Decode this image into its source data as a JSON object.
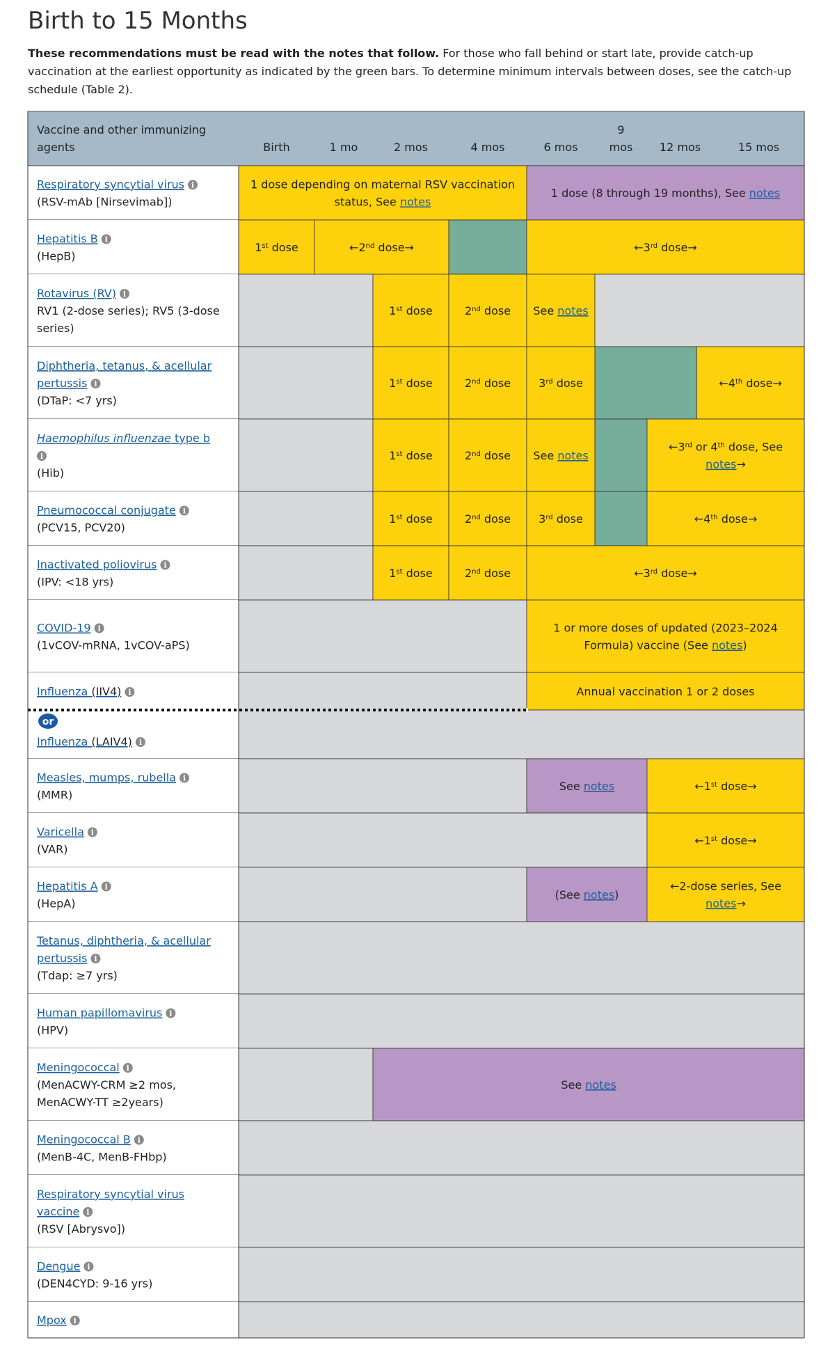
{
  "title": "Birth to 15 Months",
  "intro": {
    "bold": "These recommendations must be read with the notes that follow.",
    "text": "For those who fall behind or start late, provide catch-up vaccination at the earliest opportunity as indicated by the green bars. To determine minimum intervals between doses, see the catch-up schedule (Table 2)."
  },
  "colors": {
    "header_bg": "#a5b9c9",
    "yellow": "#fdd10c",
    "green": "#76ad9b",
    "purple": "#b897c6",
    "gray": "#d7d8d9",
    "link": "#1b5f9e",
    "or_badge": "#1c5aa8"
  },
  "header": {
    "first": [
      "Vaccine and other immunizing",
      "agents"
    ],
    "ages": [
      "Birth",
      "1 mo",
      "2 mos",
      "4 mos",
      "6 mos",
      "9 mos",
      "12 mos",
      "15 mos"
    ]
  },
  "or_label": "or",
  "rows": [
    {
      "name": [
        "Respiratory syncytial virus"
      ],
      "sub": [
        "(RSV-mAb [Nirsevimab])"
      ],
      "info": true,
      "cells": [
        {
          "span": [
            0,
            4
          ],
          "color": "yellow",
          "text": "1 dose depending on maternal RSV vaccination status, See notes"
        },
        {
          "span": [
            4,
            8
          ],
          "color": "purple",
          "text": "1 dose (8 through 19 months), See notes"
        }
      ]
    },
    {
      "name": [
        "Hepatitis B"
      ],
      "sub": [
        "(HepB)"
      ],
      "info": true,
      "cells": [
        {
          "span": [
            0,
            1
          ],
          "color": "yellow",
          "text": "1st dose"
        },
        {
          "span": [
            1,
            3
          ],
          "color": "yellow",
          "text": "←2nd dose→"
        },
        {
          "span": [
            3,
            4
          ],
          "color": "green",
          "text": ""
        },
        {
          "span": [
            4,
            8
          ],
          "color": "yellow",
          "text": "←3rd dose→"
        }
      ]
    },
    {
      "name": [
        "Rotavirus (RV)"
      ],
      "sub": [
        "RV1 (2-dose series); RV5 (3-dose",
        "series)"
      ],
      "info": true,
      "cells": [
        {
          "span": [
            0,
            2
          ],
          "color": "gray",
          "text": ""
        },
        {
          "span": [
            2,
            3
          ],
          "color": "yellow",
          "text": "1st dose"
        },
        {
          "span": [
            3,
            4
          ],
          "color": "yellow",
          "text": "2nd dose"
        },
        {
          "span": [
            4,
            5
          ],
          "color": "yellow",
          "text": "See notes"
        },
        {
          "span": [
            5,
            8
          ],
          "color": "gray",
          "text": ""
        }
      ]
    },
    {
      "name": [
        "Diphtheria, tetanus, & acellular",
        "pertussis"
      ],
      "sub": [
        "(DTaP: <7 yrs)"
      ],
      "info": true,
      "cells": [
        {
          "span": [
            0,
            2
          ],
          "color": "gray",
          "text": ""
        },
        {
          "span": [
            2,
            3
          ],
          "color": "yellow",
          "text": "1st dose"
        },
        {
          "span": [
            3,
            4
          ],
          "color": "yellow",
          "text": "2nd dose"
        },
        {
          "span": [
            4,
            5
          ],
          "color": "yellow",
          "text": "3rd dose"
        },
        {
          "span": [
            5,
            6.75
          ],
          "color": "green",
          "text": ""
        },
        {
          "span": [
            6.75,
            8
          ],
          "color": "yellow",
          "text": "←4th dose→"
        }
      ]
    },
    {
      "name": [
        "Haemophilus influenzae type b"
      ],
      "sub": [
        "(Hib)"
      ],
      "info": true,
      "info_own_line": true,
      "cells": [
        {
          "span": [
            0,
            2
          ],
          "color": "gray",
          "text": ""
        },
        {
          "span": [
            2,
            3
          ],
          "color": "yellow",
          "text": "1st dose"
        },
        {
          "span": [
            3,
            4
          ],
          "color": "yellow",
          "text": "2nd dose"
        },
        {
          "span": [
            4,
            5
          ],
          "color": "yellow",
          "text": "See notes"
        },
        {
          "span": [
            5,
            6
          ],
          "color": "green",
          "text": ""
        },
        {
          "span": [
            6,
            8
          ],
          "color": "yellow",
          "text": "←3rd or 4th dose, See notes→"
        }
      ]
    },
    {
      "name": [
        "Pneumococcal conjugate"
      ],
      "sub": [
        "(PCV15, PCV20)"
      ],
      "info": true,
      "cells": [
        {
          "span": [
            0,
            2
          ],
          "color": "gray",
          "text": ""
        },
        {
          "span": [
            2,
            3
          ],
          "color": "yellow",
          "text": "1st dose"
        },
        {
          "span": [
            3,
            4
          ],
          "color": "yellow",
          "text": "2nd dose"
        },
        {
          "span": [
            4,
            5
          ],
          "color": "yellow",
          "text": "3rd dose"
        },
        {
          "span": [
            5,
            6
          ],
          "color": "green",
          "text": ""
        },
        {
          "span": [
            6,
            8
          ],
          "color": "yellow",
          "text": "←4th dose→"
        }
      ]
    },
    {
      "name": [
        "Inactivated poliovirus"
      ],
      "sub": [
        "(IPV: <18 yrs)"
      ],
      "info": true,
      "cells": [
        {
          "span": [
            0,
            2
          ],
          "color": "gray",
          "text": ""
        },
        {
          "span": [
            2,
            3
          ],
          "color": "yellow",
          "text": "1st dose"
        },
        {
          "span": [
            3,
            4
          ],
          "color": "yellow",
          "text": "2nd dose"
        },
        {
          "span": [
            4,
            8
          ],
          "color": "yellow",
          "text": "←3rd dose→"
        }
      ]
    },
    {
      "name": [
        "COVID-19"
      ],
      "sub": [
        "(1vCOV-mRNA, 1vCOV-aPS)"
      ],
      "info": true,
      "cells": [
        {
          "span": [
            0,
            4
          ],
          "color": "gray",
          "text": ""
        },
        {
          "span": [
            4,
            8
          ],
          "color": "yellow",
          "text": "1 or more doses of updated (2023–2024 Formula) vaccine (See notes)"
        }
      ]
    },
    {
      "name": [
        "Influenza"
      ],
      "name_suffix": " (IIV4)",
      "sub": [],
      "info": true,
      "influenza_top": true,
      "cells": [
        {
          "span": [
            0,
            4
          ],
          "color": "gray",
          "text": ""
        },
        {
          "span": [
            4,
            8
          ],
          "color": "yellow",
          "text": "Annual vaccination 1 or 2 doses"
        }
      ]
    },
    {
      "name": [
        "Influenza"
      ],
      "name_suffix": " (LAIV4)",
      "sub": [],
      "info": true,
      "influenza_bottom": true,
      "cells": [
        {
          "span": [
            0,
            8
          ],
          "color": "gray",
          "text": ""
        }
      ]
    },
    {
      "name": [
        "Measles, mumps, rubella"
      ],
      "sub": [
        "(MMR)"
      ],
      "info": true,
      "cells": [
        {
          "span": [
            0,
            4
          ],
          "color": "gray",
          "text": ""
        },
        {
          "span": [
            4,
            6
          ],
          "color": "purple",
          "text": "See notes"
        },
        {
          "span": [
            6,
            8
          ],
          "color": "yellow",
          "text": "←1st dose→"
        }
      ]
    },
    {
      "name": [
        "Varicella"
      ],
      "sub": [
        "(VAR)"
      ],
      "info": true,
      "cells": [
        {
          "span": [
            0,
            6
          ],
          "color": "gray",
          "text": ""
        },
        {
          "span": [
            6,
            8
          ],
          "color": "yellow",
          "text": "←1st dose→"
        }
      ]
    },
    {
      "name": [
        "Hepatitis A"
      ],
      "sub": [
        "(HepA)"
      ],
      "info": true,
      "cells": [
        {
          "span": [
            0,
            4
          ],
          "color": "gray",
          "text": ""
        },
        {
          "span": [
            4,
            6
          ],
          "color": "purple",
          "text": "(See notes)"
        },
        {
          "span": [
            6,
            8
          ],
          "color": "yellow",
          "text": "←2-dose series, See notes→"
        }
      ]
    },
    {
      "name": [
        "Tetanus, diphtheria, & acellular",
        "pertussis"
      ],
      "sub": [
        "(Tdap: ≥7 yrs)"
      ],
      "info": true,
      "cells": [
        {
          "span": [
            0,
            8
          ],
          "color": "gray",
          "text": ""
        }
      ]
    },
    {
      "name": [
        "Human papillomavirus"
      ],
      "sub": [
        "(HPV)"
      ],
      "info": true,
      "cells": [
        {
          "span": [
            0,
            8
          ],
          "color": "gray",
          "text": ""
        }
      ]
    },
    {
      "name": [
        "Meningococcal"
      ],
      "sub": [
        "(MenACWY-CRM ≥2 mos,",
        "MenACWY-TT ≥2years)"
      ],
      "info": true,
      "cells": [
        {
          "span": [
            0,
            2
          ],
          "color": "gray",
          "text": ""
        },
        {
          "span": [
            2,
            8
          ],
          "color": "purple",
          "text": "See notes"
        }
      ]
    },
    {
      "name": [
        "Meningococcal B"
      ],
      "sub": [
        "(MenB-4C, MenB-FHbp)"
      ],
      "info": true,
      "cells": [
        {
          "span": [
            0,
            8
          ],
          "color": "gray",
          "text": ""
        }
      ]
    },
    {
      "name": [
        "Respiratory syncytial virus",
        "vaccine"
      ],
      "sub": [
        "(RSV [Abrysvo])"
      ],
      "info": true,
      "cells": [
        {
          "span": [
            0,
            8
          ],
          "color": "gray",
          "text": ""
        }
      ]
    },
    {
      "name": [
        "Dengue"
      ],
      "sub": [
        "(DEN4CYD: 9-16 yrs)"
      ],
      "info": true,
      "cells": [
        {
          "span": [
            0,
            8
          ],
          "color": "gray",
          "text": ""
        }
      ]
    },
    {
      "name": [
        "Mpox"
      ],
      "sub": [],
      "info": true,
      "cells": [
        {
          "span": [
            0,
            8
          ],
          "color": "gray",
          "text": ""
        }
      ]
    }
  ]
}
